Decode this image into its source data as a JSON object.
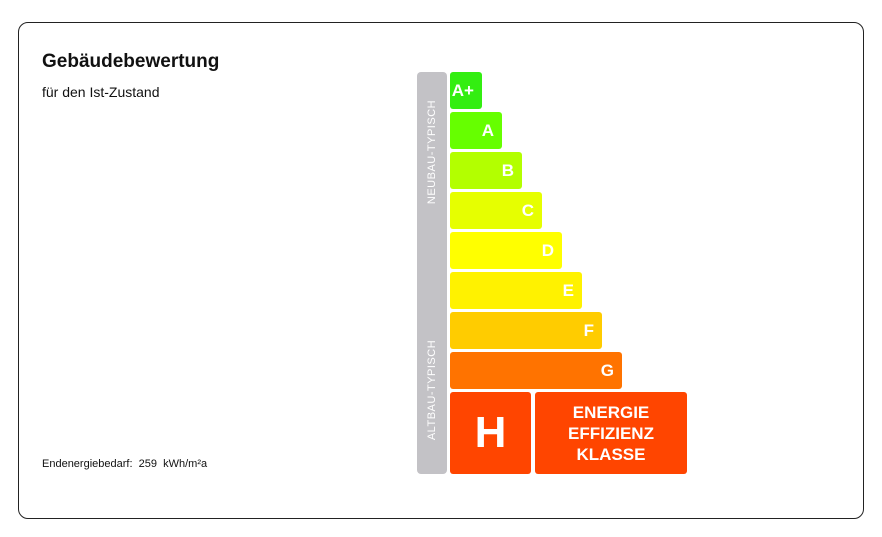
{
  "header": {
    "title": "Gebäudebewertung",
    "subtitle": "für den Ist-Zustand"
  },
  "scale": {
    "new_label": "NEUBAU-TYPISCH",
    "old_label": "ALTBAU-TYPISCH",
    "classes": [
      {
        "label": "A+",
        "color": "#33ee11"
      },
      {
        "label": "A",
        "color": "#66ff00"
      },
      {
        "label": "B",
        "color": "#b3ff00"
      },
      {
        "label": "C",
        "color": "#e6ff00"
      },
      {
        "label": "D",
        "color": "#ffff00"
      },
      {
        "label": "E",
        "color": "#fff200"
      },
      {
        "label": "F",
        "color": "#ffcc00"
      },
      {
        "label": "G",
        "color": "#ff7300"
      }
    ]
  },
  "result": {
    "class": "H",
    "color": "#ff4500",
    "caption": [
      "ENERGIE",
      "EFFIZIENZ",
      "KLASSE"
    ]
  },
  "footer": {
    "label": "Endenergiebedarf:",
    "value": "259",
    "unit": "kWh/m²a"
  }
}
